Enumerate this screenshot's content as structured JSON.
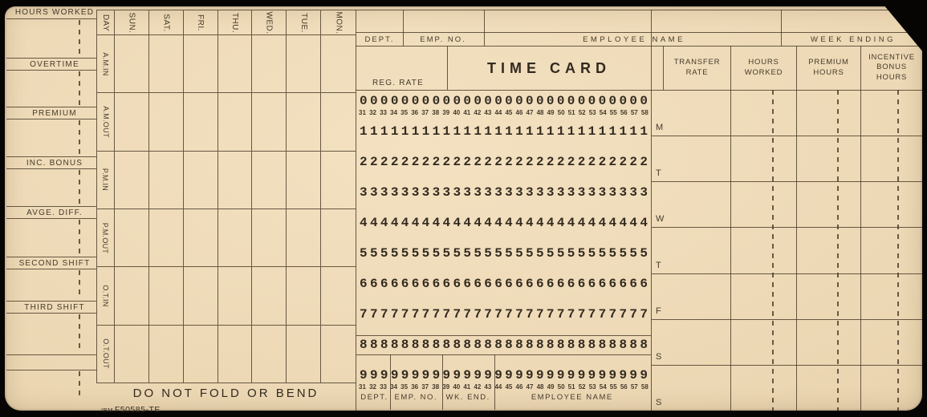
{
  "card": {
    "colors": {
      "paper": "#eed9b7",
      "ink": "#453a2b"
    },
    "stub": {
      "labels": [
        "HOURS WORKED",
        "OVERTIME",
        "PREMIUM",
        "INC. BONUS",
        "AVGE. DIFF.",
        "SECOND SHIFT",
        "THIRD SHIFT"
      ]
    },
    "day_grid": {
      "corner": "DAY",
      "days": [
        "SUN.",
        "SAT.",
        "FRI.",
        "THU.",
        "WED.",
        "TUE.",
        "MON."
      ],
      "rows": [
        {
          "period": "A.M.",
          "inout": "IN"
        },
        {
          "period": "A.M.",
          "inout": "OUT"
        },
        {
          "period": "P.M.",
          "inout": "IN"
        },
        {
          "period": "P.M.",
          "inout": "OUT"
        },
        {
          "period": "O.T.",
          "inout": "IN"
        },
        {
          "period": "O.T.",
          "inout": "OUT"
        }
      ]
    },
    "header": {
      "dept": "DEPT.",
      "emp_no": "EMP. NO.",
      "employee_name": "EMPLOYEE NAME",
      "week_ending": "WEEK ENDING",
      "reg_rate": "REG. RATE",
      "title": "TIME CARD",
      "columns": [
        "TRANSFER\nRATE",
        "HOURS\nWORKED",
        "PREMIUM\nHOURS",
        "INCENTIVE\nBONUS\nHOURS"
      ]
    },
    "punch": {
      "digits": [
        "0",
        "1",
        "2",
        "3",
        "4",
        "5",
        "6",
        "7",
        "8",
        "9"
      ],
      "column_numbers": [
        31,
        32,
        33,
        34,
        35,
        36,
        37,
        38,
        39,
        40,
        41,
        42,
        43,
        44,
        45,
        46,
        47,
        48,
        49,
        50,
        51,
        52,
        53,
        54,
        55,
        56,
        57,
        58
      ],
      "fields": [
        {
          "label": "DEPT.",
          "start": 31,
          "end": 33
        },
        {
          "label": "EMP. NO.",
          "start": 34,
          "end": 38
        },
        {
          "label": "WK. END.",
          "start": 39,
          "end": 43
        },
        {
          "label": "EMPLOYEE NAME",
          "start": 44,
          "end": 58
        }
      ]
    },
    "right_grid": {
      "day_letters": [
        "M",
        "T",
        "W",
        "T",
        "F",
        "S",
        "S"
      ]
    },
    "footer": {
      "warning": "DO NOT FOLD OR BEND",
      "brand": "IBM",
      "form_number": "F50585-TE"
    }
  }
}
